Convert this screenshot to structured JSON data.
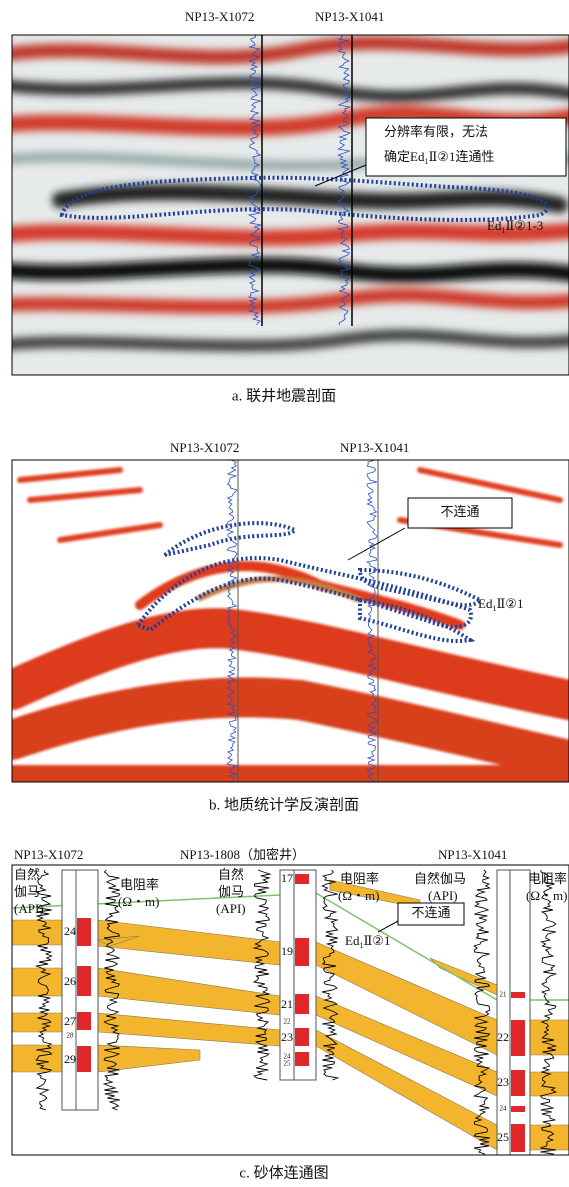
{
  "panel_a": {
    "wells": [
      "NP13-X1072",
      "NP13-X1041"
    ],
    "callout_line1": "分辨率有限，无法",
    "callout_line2": {
      "before": "确定Ed",
      "sub": "1",
      "after": "Ⅱ②1连通性"
    },
    "label": {
      "before": "Ed",
      "sub": "1",
      "after": "Ⅱ②1-3"
    },
    "caption": "a. 联井地震剖面"
  },
  "panel_b": {
    "wells": [
      "NP13-X1072",
      "NP13-X1041"
    ],
    "callout": "不连通",
    "label": {
      "before": "Ed",
      "sub": "1",
      "after": "Ⅱ②1"
    },
    "caption": "b. 地质统计学反演剖面"
  },
  "panel_c": {
    "wells": [
      "NP13-X1072",
      "NP13-1808（加密井）",
      "NP13-X1041"
    ],
    "gr_label": [
      "自然",
      "伽马",
      "(API)"
    ],
    "res_label": [
      "电阻率",
      "(Ω・m)"
    ],
    "layers_1": [
      "24",
      "26",
      "27",
      "28",
      "29"
    ],
    "layers_2": [
      "17",
      "19",
      "21",
      "22",
      "23",
      "24",
      "25"
    ],
    "layers_3": [
      "21",
      "22",
      "23",
      "24",
      "25"
    ],
    "callout": "不连通",
    "label": {
      "before": "Ed",
      "sub": "1",
      "after": "Ⅱ②1"
    },
    "caption": "c. 砂体连通图"
  }
}
